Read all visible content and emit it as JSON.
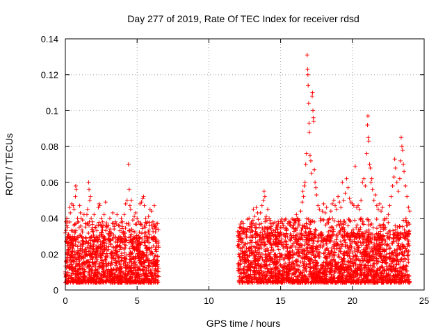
{
  "chart_data": {
    "type": "scatter",
    "title": "Day 277 of 2019, Rate Of TEC Index for receiver rdsd",
    "xlabel": "GPS time / hours",
    "ylabel": "ROTI / TECUs",
    "xlim": [
      0,
      25
    ],
    "ylim": [
      0,
      0.14
    ],
    "x_ticks": [
      "0",
      "5",
      "10",
      "15",
      "20",
      "25"
    ],
    "y_ticks": [
      "0",
      "0.02",
      "0.04",
      "0.06",
      "0.08",
      "0.1",
      "0.12",
      "0.14"
    ],
    "x_tick_values": [
      0,
      5,
      10,
      15,
      20,
      25
    ],
    "y_tick_values": [
      0,
      0.02,
      0.04,
      0.06,
      0.08,
      0.1,
      0.12,
      0.14
    ],
    "grid": true,
    "marker": "+",
    "color": "#ff0000",
    "series": [
      {
        "name": "ROTI",
        "points": [
          [
            0.05,
            0.038
          ],
          [
            0.1,
            0.04
          ],
          [
            0.15,
            0.035
          ],
          [
            0.2,
            0.031
          ],
          [
            0.3,
            0.046
          ],
          [
            0.35,
            0.043
          ],
          [
            0.45,
            0.048
          ],
          [
            0.55,
            0.047
          ],
          [
            0.6,
            0.045
          ],
          [
            0.7,
            0.052
          ],
          [
            0.72,
            0.058
          ],
          [
            0.75,
            0.056
          ],
          [
            0.85,
            0.04
          ],
          [
            0.9,
            0.038
          ],
          [
            1.0,
            0.047
          ],
          [
            1.05,
            0.043
          ],
          [
            1.1,
            0.04
          ],
          [
            1.2,
            0.039
          ],
          [
            1.3,
            0.042
          ],
          [
            1.4,
            0.037
          ],
          [
            1.5,
            0.042
          ],
          [
            1.55,
            0.045
          ],
          [
            1.62,
            0.06
          ],
          [
            1.65,
            0.056
          ],
          [
            1.7,
            0.05
          ],
          [
            1.75,
            0.052
          ],
          [
            1.8,
            0.04
          ],
          [
            1.9,
            0.038
          ],
          [
            2.0,
            0.042
          ],
          [
            2.1,
            0.035
          ],
          [
            2.2,
            0.036
          ],
          [
            2.3,
            0.046
          ],
          [
            2.35,
            0.048
          ],
          [
            2.4,
            0.047
          ],
          [
            2.5,
            0.04
          ],
          [
            2.6,
            0.038
          ],
          [
            2.7,
            0.042
          ],
          [
            2.8,
            0.049
          ],
          [
            2.9,
            0.035
          ],
          [
            3.0,
            0.036
          ],
          [
            3.1,
            0.04
          ],
          [
            3.2,
            0.032
          ],
          [
            3.3,
            0.043
          ],
          [
            3.4,
            0.034
          ],
          [
            3.5,
            0.038
          ],
          [
            3.6,
            0.042
          ],
          [
            3.7,
            0.036
          ],
          [
            3.8,
            0.033
          ],
          [
            3.9,
            0.04
          ],
          [
            4.0,
            0.038
          ],
          [
            4.1,
            0.042
          ],
          [
            4.2,
            0.048
          ],
          [
            4.3,
            0.05
          ],
          [
            4.4,
            0.07
          ],
          [
            4.45,
            0.056
          ],
          [
            4.5,
            0.047
          ],
          [
            4.55,
            0.045
          ],
          [
            4.6,
            0.05
          ],
          [
            4.7,
            0.039
          ],
          [
            4.8,
            0.041
          ],
          [
            4.9,
            0.043
          ],
          [
            5.0,
            0.04
          ],
          [
            5.1,
            0.038
          ],
          [
            5.2,
            0.048
          ],
          [
            5.3,
            0.049
          ],
          [
            5.4,
            0.051
          ],
          [
            5.45,
            0.052
          ],
          [
            5.5,
            0.047
          ],
          [
            5.6,
            0.04
          ],
          [
            5.7,
            0.038
          ],
          [
            5.8,
            0.041
          ],
          [
            5.9,
            0.045
          ],
          [
            6.0,
            0.044
          ],
          [
            6.1,
            0.038
          ],
          [
            6.2,
            0.047
          ],
          [
            6.3,
            0.034
          ],
          [
            12.0,
            0.025
          ],
          [
            12.05,
            0.03
          ],
          [
            12.1,
            0.028
          ],
          [
            12.2,
            0.035
          ],
          [
            12.3,
            0.038
          ],
          [
            12.4,
            0.033
          ],
          [
            12.5,
            0.034
          ],
          [
            12.6,
            0.031
          ],
          [
            12.7,
            0.026
          ],
          [
            12.8,
            0.04
          ],
          [
            12.9,
            0.032
          ],
          [
            13.0,
            0.035
          ],
          [
            13.1,
            0.045
          ],
          [
            13.2,
            0.041
          ],
          [
            13.3,
            0.046
          ],
          [
            13.4,
            0.043
          ],
          [
            13.5,
            0.035
          ],
          [
            13.6,
            0.043
          ],
          [
            13.7,
            0.047
          ],
          [
            13.8,
            0.05
          ],
          [
            13.85,
            0.055
          ],
          [
            13.9,
            0.052
          ],
          [
            14.0,
            0.041
          ],
          [
            14.1,
            0.045
          ],
          [
            14.2,
            0.04
          ],
          [
            14.3,
            0.034
          ],
          [
            14.4,
            0.037
          ],
          [
            14.5,
            0.033
          ],
          [
            14.6,
            0.032
          ],
          [
            14.7,
            0.035
          ],
          [
            14.8,
            0.034
          ],
          [
            14.9,
            0.03
          ],
          [
            15.0,
            0.035
          ],
          [
            15.1,
            0.038
          ],
          [
            15.2,
            0.036
          ],
          [
            15.3,
            0.039
          ],
          [
            15.4,
            0.031
          ],
          [
            15.5,
            0.037
          ],
          [
            15.6,
            0.038
          ],
          [
            15.7,
            0.036
          ],
          [
            15.8,
            0.035
          ],
          [
            15.9,
            0.036
          ],
          [
            16.0,
            0.034
          ],
          [
            16.1,
            0.042
          ],
          [
            16.2,
            0.04
          ],
          [
            16.3,
            0.039
          ],
          [
            16.4,
            0.044
          ],
          [
            16.5,
            0.049
          ],
          [
            16.55,
            0.055
          ],
          [
            16.6,
            0.052
          ],
          [
            16.65,
            0.058
          ],
          [
            16.7,
            0.06
          ],
          [
            16.75,
            0.07
          ],
          [
            16.8,
            0.076
          ],
          [
            16.85,
            0.131
          ],
          [
            16.88,
            0.123
          ],
          [
            16.9,
            0.12
          ],
          [
            16.92,
            0.114
          ],
          [
            16.95,
            0.104
          ],
          [
            16.98,
            0.093
          ],
          [
            17.0,
            0.088
          ],
          [
            17.05,
            0.075
          ],
          [
            17.1,
            0.072
          ],
          [
            17.15,
            0.065
          ],
          [
            17.2,
            0.108
          ],
          [
            17.22,
            0.11
          ],
          [
            17.25,
            0.1
          ],
          [
            17.28,
            0.096
          ],
          [
            17.3,
            0.094
          ],
          [
            17.35,
            0.067
          ],
          [
            17.4,
            0.06
          ],
          [
            17.45,
            0.057
          ],
          [
            17.5,
            0.053
          ],
          [
            17.6,
            0.047
          ],
          [
            17.7,
            0.045
          ],
          [
            17.8,
            0.04
          ],
          [
            17.9,
            0.044
          ],
          [
            18.0,
            0.048
          ],
          [
            18.1,
            0.043
          ],
          [
            18.2,
            0.046
          ],
          [
            18.3,
            0.039
          ],
          [
            18.4,
            0.04
          ],
          [
            18.5,
            0.044
          ],
          [
            18.6,
            0.048
          ],
          [
            18.7,
            0.05
          ],
          [
            18.8,
            0.047
          ],
          [
            18.9,
            0.045
          ],
          [
            19.0,
            0.052
          ],
          [
            19.1,
            0.049
          ],
          [
            19.2,
            0.046
          ],
          [
            19.3,
            0.06
          ],
          [
            19.4,
            0.05
          ],
          [
            19.5,
            0.054
          ],
          [
            19.6,
            0.062
          ],
          [
            19.7,
            0.057
          ],
          [
            19.8,
            0.051
          ],
          [
            19.9,
            0.049
          ],
          [
            20.0,
            0.048
          ],
          [
            20.1,
            0.047
          ],
          [
            20.2,
            0.069
          ],
          [
            20.3,
            0.046
          ],
          [
            20.4,
            0.047
          ],
          [
            20.5,
            0.045
          ],
          [
            20.6,
            0.05
          ],
          [
            20.7,
            0.06
          ],
          [
            20.8,
            0.062
          ],
          [
            20.9,
            0.058
          ],
          [
            21.0,
            0.076
          ],
          [
            21.05,
            0.092
          ],
          [
            21.08,
            0.097
          ],
          [
            21.1,
            0.085
          ],
          [
            21.15,
            0.083
          ],
          [
            21.2,
            0.07
          ],
          [
            21.25,
            0.068
          ],
          [
            21.3,
            0.06
          ],
          [
            21.35,
            0.062
          ],
          [
            21.4,
            0.056
          ],
          [
            21.5,
            0.05
          ],
          [
            21.6,
            0.053
          ],
          [
            21.7,
            0.047
          ],
          [
            21.8,
            0.045
          ],
          [
            21.9,
            0.048
          ],
          [
            22.0,
            0.044
          ],
          [
            22.1,
            0.046
          ],
          [
            22.2,
            0.039
          ],
          [
            22.3,
            0.035
          ],
          [
            22.4,
            0.04
          ],
          [
            22.5,
            0.042
          ],
          [
            22.6,
            0.047
          ],
          [
            22.7,
            0.052
          ],
          [
            22.8,
            0.058
          ],
          [
            22.9,
            0.063
          ],
          [
            22.95,
            0.073
          ],
          [
            23.0,
            0.068
          ],
          [
            23.1,
            0.06
          ],
          [
            23.2,
            0.055
          ],
          [
            23.3,
            0.062
          ],
          [
            23.35,
            0.072
          ],
          [
            23.4,
            0.085
          ],
          [
            23.45,
            0.08
          ],
          [
            23.5,
            0.078
          ],
          [
            23.55,
            0.07
          ],
          [
            23.6,
            0.066
          ],
          [
            23.7,
            0.058
          ],
          [
            23.8,
            0.052
          ],
          [
            23.9,
            0.046
          ],
          [
            24.0,
            0.044
          ]
        ]
      }
    ],
    "dense_band": {
      "note": "continuous dense cluster of points between these ROTI values",
      "segments": [
        {
          "x_start": 0.0,
          "x_end": 6.5,
          "y_low": 0.004,
          "y_high": 0.03
        },
        {
          "x_start": 12.0,
          "x_end": 24.0,
          "y_low": 0.004,
          "y_high": 0.032
        }
      ]
    }
  }
}
